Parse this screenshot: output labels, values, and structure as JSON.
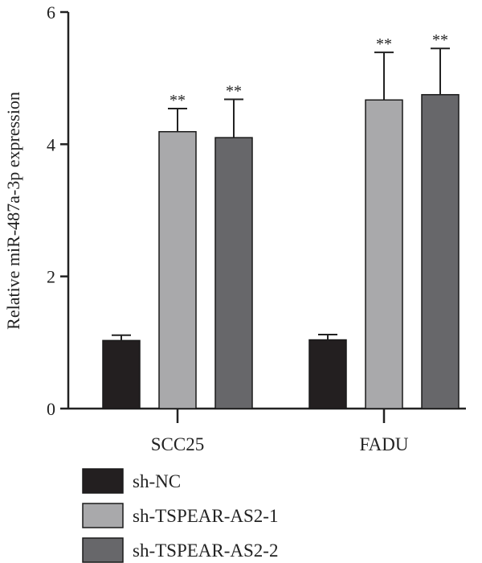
{
  "chart_data": {
    "type": "bar",
    "title": "",
    "xlabel": "",
    "ylabel": "Relative miR-487a-3p expression",
    "ylim": [
      0,
      6
    ],
    "yticks": [
      0,
      2,
      4,
      6
    ],
    "grid": false,
    "legend_position": "bottom-left",
    "categories": [
      "SCC25",
      "FADU"
    ],
    "series": [
      {
        "name": "sh-NC",
        "color": "#231f20",
        "values": [
          1.03,
          1.04
        ],
        "errors": [
          0.08,
          0.08
        ],
        "significance": [
          "",
          ""
        ]
      },
      {
        "name": "sh-TSPEAR-AS2-1",
        "color": "#a9a9ab",
        "values": [
          4.19,
          4.67
        ],
        "errors": [
          0.35,
          0.72
        ],
        "significance": [
          "**",
          "**"
        ]
      },
      {
        "name": "sh-TSPEAR-AS2-2",
        "color": "#67676a",
        "values": [
          4.1,
          4.75
        ],
        "errors": [
          0.58,
          0.7
        ],
        "significance": [
          "**",
          "**"
        ]
      }
    ]
  }
}
